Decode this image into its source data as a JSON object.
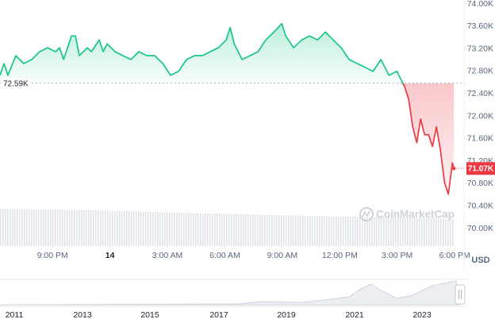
{
  "chart_data": {
    "type": "line",
    "x": [
      18.26,
      18.47,
      18.67,
      19.09,
      19.5,
      19.92,
      20.33,
      20.75,
      21.16,
      21.37,
      21.58,
      21.99,
      22.2,
      22.4,
      22.82,
      23.03,
      23.44,
      23.65,
      23.85,
      24.27,
      24.68,
      25.1,
      25.51,
      25.93,
      26.34,
      26.76,
      27.17,
      27.58,
      28.0,
      28.41,
      28.83,
      29.24,
      29.66,
      30.07,
      30.28,
      30.49,
      30.9,
      31.31,
      31.73,
      32.14,
      32.56,
      32.97,
      33.18,
      33.59,
      34.01,
      34.42,
      34.84,
      35.25,
      35.66,
      36.08,
      36.49,
      36.91,
      37.32,
      37.74,
      38.15,
      38.57,
      38.98,
      39.19,
      39.39,
      39.6,
      39.81,
      40.02,
      40.22,
      40.43,
      40.64,
      40.84,
      41.05,
      41.26,
      41.47,
      41.67,
      41.88,
      41.96
    ],
    "values": [
      72730,
      72940,
      72730,
      73080,
      72940,
      73010,
      73150,
      73220,
      73150,
      73220,
      73010,
      73430,
      73430,
      73080,
      73220,
      73150,
      73360,
      73150,
      73290,
      73150,
      73080,
      73010,
      73150,
      73080,
      73080,
      72940,
      72730,
      72800,
      73010,
      73080,
      73080,
      73150,
      73220,
      73360,
      73580,
      73290,
      73010,
      73080,
      73150,
      73360,
      73500,
      73650,
      73430,
      73220,
      73360,
      73430,
      73360,
      73500,
      73360,
      73220,
      73010,
      72940,
      72870,
      72800,
      73010,
      72730,
      72800,
      72660,
      72520,
      72300,
      71810,
      71530,
      71950,
      71670,
      71670,
      71460,
      71810,
      71390,
      70820,
      70610,
      71170,
      71070
    ],
    "color_up": "#16c784",
    "color_down": "#ea3943",
    "xlim": [
      18.26,
      42.2
    ],
    "ylim": [
      70000,
      74000
    ],
    "xticks": [
      {
        "value": 21,
        "label": "9:00 PM"
      },
      {
        "value": 24,
        "label": "14"
      },
      {
        "value": 27,
        "label": "3:00 AM"
      },
      {
        "value": 30,
        "label": "6:00 AM"
      },
      {
        "value": 33,
        "label": "9:00 AM"
      },
      {
        "value": 36,
        "label": "12:00 PM"
      },
      {
        "value": 39,
        "label": "3:00 PM"
      },
      {
        "value": 42,
        "label": "6:00 PM"
      }
    ],
    "yticks": [
      {
        "value": 70000,
        "label": "70.00K"
      },
      {
        "value": 70400,
        "label": "70.40K"
      },
      {
        "value": 70800,
        "label": "70.80K"
      },
      {
        "value": 71200,
        "label": "71.20K"
      },
      {
        "value": 71600,
        "label": "71.60K"
      },
      {
        "value": 72000,
        "label": "72.00K"
      },
      {
        "value": 72400,
        "label": "72.40K"
      },
      {
        "value": 72800,
        "label": "72.80K"
      },
      {
        "value": 73200,
        "label": "73.20K"
      },
      {
        "value": 73600,
        "label": "73.60K"
      },
      {
        "value": 74000,
        "label": "74.00K"
      }
    ],
    "grid": false,
    "reference": {
      "value": 72590,
      "label": "72.59K"
    },
    "last": {
      "value": 71070,
      "label": "71.07K"
    },
    "currency": "USD",
    "watermark": "CoinMarketCap",
    "navigator_years": [
      "2011",
      "2013",
      "2015",
      "2017",
      "2019",
      "2021",
      "2023"
    ]
  }
}
